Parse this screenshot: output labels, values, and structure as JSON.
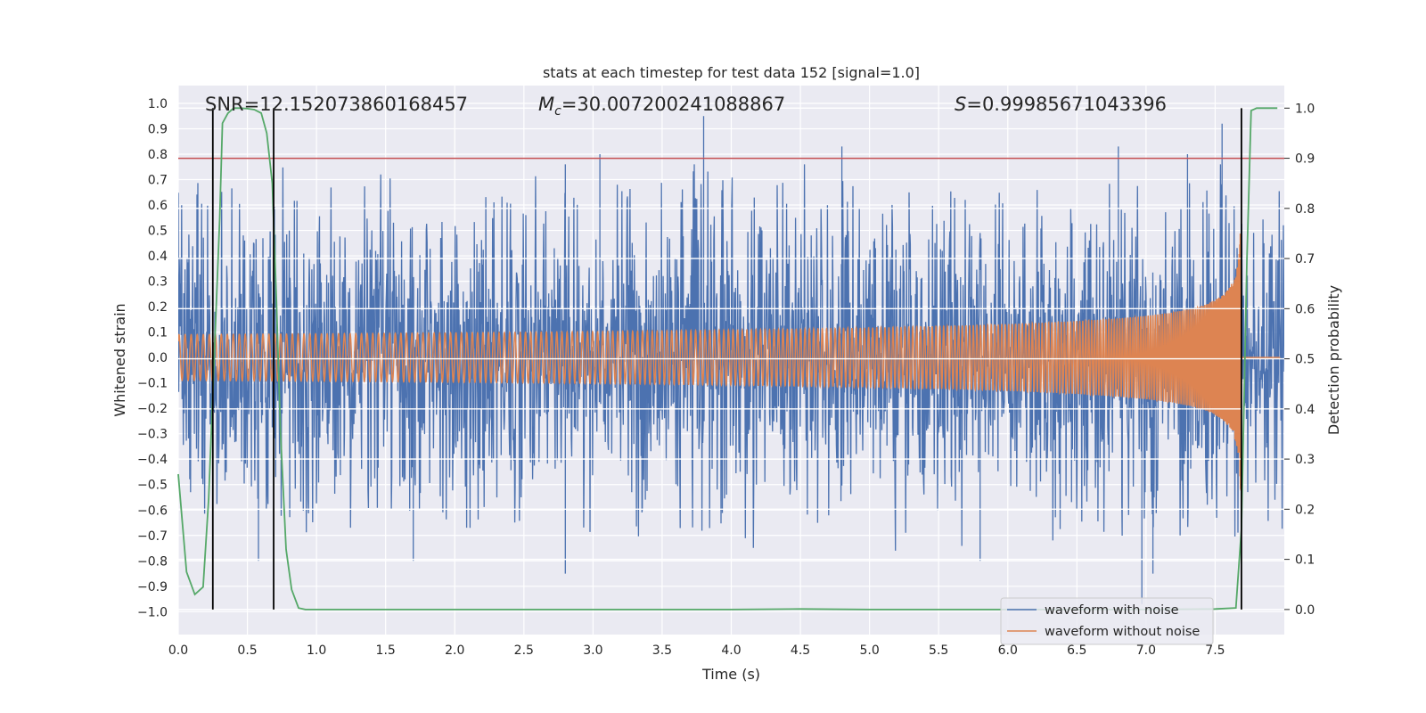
{
  "chart_data": {
    "type": "line",
    "title": "stats at each timestep for test data 152 [signal=1.0]",
    "xlabel": "Time (s)",
    "ylabel_left": "Whitened strain",
    "ylabel_right": "Detection probability",
    "xlim": [
      0.0,
      8.0
    ],
    "ylim_left": [
      -1.09,
      1.07
    ],
    "ylim_right": [
      -0.05,
      1.045
    ],
    "xticks": [
      0.0,
      0.5,
      1.0,
      1.5,
      2.0,
      2.5,
      3.0,
      3.5,
      4.0,
      4.5,
      5.0,
      5.5,
      6.0,
      6.5,
      7.0,
      7.5
    ],
    "xtick_labels": [
      "0.0",
      "0.5",
      "1.0",
      "1.5",
      "2.0",
      "2.5",
      "3.0",
      "3.5",
      "4.0",
      "4.5",
      "5.0",
      "5.5",
      "6.0",
      "6.5",
      "7.0",
      "7.5"
    ],
    "yticks_left": [
      1.0,
      0.9,
      0.8,
      0.7,
      0.6,
      0.5,
      0.4,
      0.3,
      0.2,
      0.1,
      0.0,
      -0.1,
      -0.2,
      -0.3,
      -0.4,
      -0.5,
      -0.6,
      -0.7,
      -0.8,
      -0.9,
      -1.0
    ],
    "ytick_labels_left": [
      "1.0",
      "0.9",
      "0.8",
      "0.7",
      "0.6",
      "0.5",
      "0.4",
      "0.3",
      "0.2",
      "0.1",
      "0.0",
      "−0.1",
      "−0.2",
      "−0.3",
      "−0.4",
      "−0.5",
      "−0.6",
      "−0.7",
      "−0.8",
      "−0.9",
      "−1.0"
    ],
    "yticks_right": [
      1.0,
      0.9,
      0.8,
      0.7,
      0.6,
      0.5,
      0.4,
      0.3,
      0.2,
      0.1,
      0.0
    ],
    "ytick_labels_right": [
      "1.0",
      "0.9",
      "0.8",
      "0.7",
      "0.6",
      "0.5",
      "0.4",
      "0.3",
      "0.2",
      "0.1",
      "0.0"
    ],
    "grid": true,
    "legend_position": "lower-right",
    "annotations": {
      "snr": "SNR=12.152073860168457",
      "mc_symbol": "M",
      "mc_subscript": "c",
      "mc_value": "=30.007200241088867",
      "s_symbol": "S",
      "s_value": "=0.99985671043396"
    },
    "threshold_right": 0.9,
    "vertical_markers_x": [
      0.25,
      0.69,
      7.69
    ],
    "series": [
      {
        "name": "waveform with noise",
        "axis": "left",
        "color": "#4c72b0",
        "kind": "noise",
        "duration": 8.0,
        "typical_amplitude": 0.6,
        "extreme_points": [
          {
            "x": 3.8,
            "y": 0.95
          },
          {
            "x": 3.05,
            "y": 0.8
          },
          {
            "x": 2.8,
            "y": 0.76
          },
          {
            "x": 4.8,
            "y": 0.83
          },
          {
            "x": 6.8,
            "y": 0.83
          },
          {
            "x": 7.55,
            "y": 0.92
          },
          {
            "x": 7.3,
            "y": 0.8
          },
          {
            "x": 6.97,
            "y": -0.97
          },
          {
            "x": 7.05,
            "y": -0.85
          },
          {
            "x": 2.8,
            "y": -0.85
          },
          {
            "x": 1.7,
            "y": -0.8
          },
          {
            "x": 0.58,
            "y": -0.8
          },
          {
            "x": 5.8,
            "y": -0.8
          }
        ]
      },
      {
        "name": "waveform without noise",
        "axis": "left",
        "color": "#dd8452",
        "kind": "chirp",
        "coalescence_time": 7.69,
        "peak_amplitude": 0.67
      },
      {
        "name": "",
        "axis": "right",
        "color": "#55a868",
        "kind": "probability",
        "x": [
          0.0,
          0.06,
          0.12,
          0.18,
          0.22,
          0.26,
          0.3,
          0.32,
          0.36,
          0.4,
          0.45,
          0.5,
          0.55,
          0.6,
          0.64,
          0.68,
          0.71,
          0.74,
          0.78,
          0.82,
          0.87,
          0.92,
          1.0,
          1.5,
          2.0,
          3.0,
          4.0,
          4.5,
          5.0,
          6.0,
          7.0,
          7.5,
          7.65,
          7.69,
          7.73,
          7.76,
          7.8,
          7.85,
          7.95
        ],
        "y": [
          0.27,
          0.075,
          0.03,
          0.045,
          0.22,
          0.5,
          0.78,
          0.97,
          0.99,
          1.0,
          1.0,
          0.999,
          0.997,
          0.99,
          0.95,
          0.85,
          0.62,
          0.35,
          0.12,
          0.04,
          0.003,
          0.0,
          0.0,
          0.0,
          0.0,
          0.0,
          0.0,
          0.001,
          0.0,
          0.0,
          0.0,
          0.001,
          0.003,
          0.16,
          0.7,
          0.995,
          1.0,
          1.0,
          1.0
        ]
      }
    ]
  }
}
